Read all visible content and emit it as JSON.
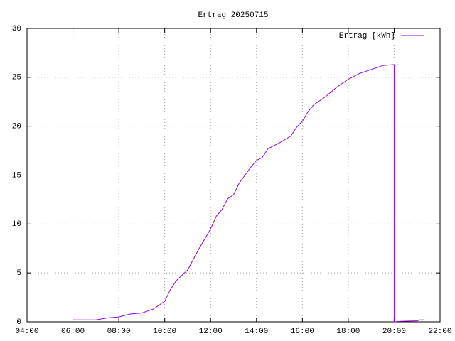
{
  "chart_data": {
    "type": "line",
    "title": "Ertrag 20250715",
    "x": [
      6.0,
      7.0,
      7.5,
      8.0,
      8.5,
      9.0,
      9.5,
      10.0,
      10.25,
      10.5,
      11.0,
      11.5,
      12.0,
      12.25,
      12.5,
      12.75,
      13.0,
      13.25,
      13.5,
      13.75,
      14.0,
      14.25,
      14.5,
      15.0,
      15.5,
      15.75,
      16.0,
      16.25,
      16.5,
      17.0,
      17.5,
      18.0,
      18.5,
      19.0,
      19.5,
      20.0,
      20.0,
      20.3,
      21.0,
      21.1,
      21.3
    ],
    "series": [
      {
        "name": "Ertrag [kWh]",
        "color": "#9400d3",
        "values": [
          0.2,
          0.2,
          0.4,
          0.5,
          0.8,
          0.9,
          1.3,
          2.1,
          3.3,
          4.2,
          5.3,
          7.5,
          9.5,
          10.8,
          11.5,
          12.6,
          13.0,
          14.2,
          15.0,
          15.8,
          16.5,
          16.8,
          17.7,
          18.3,
          19.0,
          19.9,
          20.5,
          21.5,
          22.2,
          23.0,
          24.0,
          24.8,
          25.4,
          25.8,
          26.2,
          26.3,
          0,
          0.05,
          0.1,
          0.2,
          0.2
        ]
      }
    ],
    "xlim": [
      4,
      22
    ],
    "xticks": [
      {
        "value": 4,
        "label": "04:00"
      },
      {
        "value": 6,
        "label": "06:00"
      },
      {
        "value": 8,
        "label": "08:00"
      },
      {
        "value": 10,
        "label": "10:00"
      },
      {
        "value": 12,
        "label": "12:00"
      },
      {
        "value": 14,
        "label": "14:00"
      },
      {
        "value": 16,
        "label": "16:00"
      },
      {
        "value": 18,
        "label": "18:00"
      },
      {
        "value": 20,
        "label": "20:00"
      },
      {
        "value": 22,
        "label": "22:00"
      }
    ],
    "ylim": [
      0,
      30
    ],
    "yticks": [
      0,
      5,
      10,
      15,
      20,
      25,
      30
    ],
    "grid": true,
    "legend": "top-right"
  }
}
